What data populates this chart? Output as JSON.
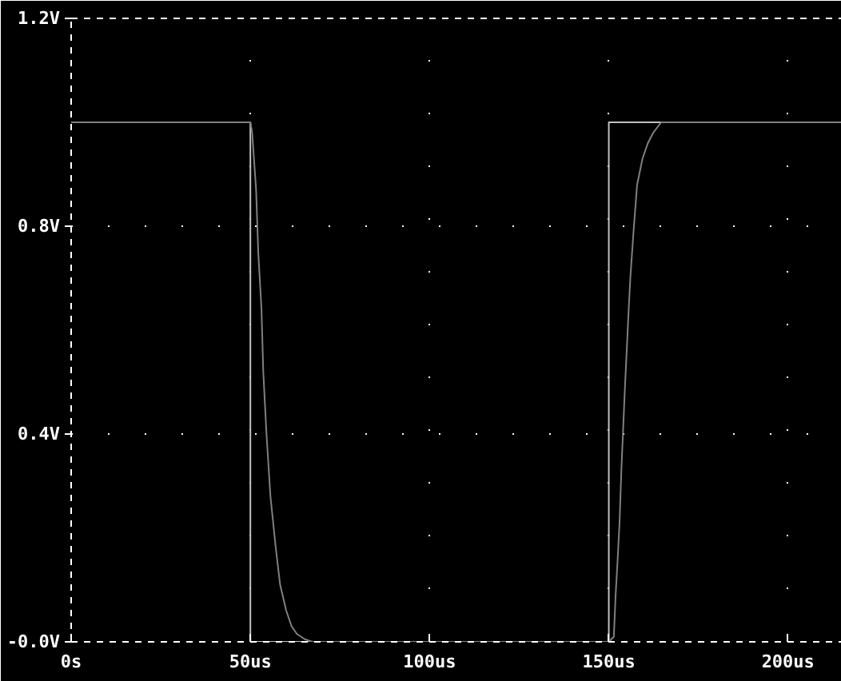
{
  "chart_data": {
    "type": "line",
    "xlim": [
      0,
      215
    ],
    "ylim": [
      0,
      1.2
    ],
    "xticks": [
      {
        "value": 0,
        "label": "0s"
      },
      {
        "value": 50,
        "label": "50us"
      },
      {
        "value": 100,
        "label": "100us"
      },
      {
        "value": 150,
        "label": "150us"
      },
      {
        "value": 200,
        "label": "200us"
      }
    ],
    "yticks": [
      {
        "value": 0,
        "label": "-0.0V"
      },
      {
        "value": 0.4,
        "label": "0.4V"
      },
      {
        "value": 0.8,
        "label": "0.8V"
      },
      {
        "value": 1.2,
        "label": "1.2V"
      }
    ],
    "grid": true,
    "series": [
      {
        "color": "#c0c0c0",
        "x": [
          0,
          50,
          50,
          150,
          150,
          215
        ],
        "values": [
          1,
          1,
          0,
          0,
          1,
          1
        ]
      },
      {
        "color": "#808080",
        "x": [
          0,
          50,
          50.5,
          51.6,
          52.2,
          53.1,
          53.6,
          54.5,
          55.6,
          57.1,
          58.3,
          60.0,
          61.5,
          63.0,
          65.2,
          67.3,
          150,
          151.4,
          151.9,
          152.4,
          153.0,
          153.5,
          154.0,
          154.5,
          155.0,
          155.4,
          156.0,
          156.9,
          157.9,
          159.4,
          160.9,
          162.4,
          164.6,
          215
        ],
        "values": [
          1,
          1,
          0.98,
          0.87,
          0.75,
          0.64,
          0.52,
          0.4,
          0.28,
          0.18,
          0.11,
          0.06,
          0.03,
          0.015,
          0.005,
          0,
          0,
          0.01,
          0.09,
          0.15,
          0.23,
          0.33,
          0.41,
          0.49,
          0.56,
          0.62,
          0.7,
          0.79,
          0.88,
          0.93,
          0.96,
          0.98,
          1,
          1
        ]
      }
    ]
  }
}
